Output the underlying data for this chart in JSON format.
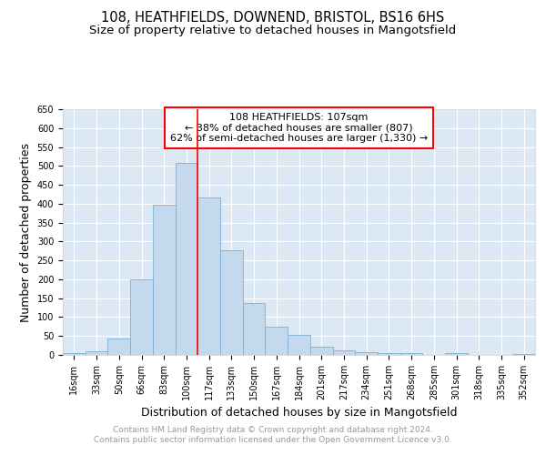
{
  "title_line1": "108, HEATHFIELDS, DOWNEND, BRISTOL, BS16 6HS",
  "title_line2": "Size of property relative to detached houses in Mangotsfield",
  "xlabel": "Distribution of detached houses by size in Mangotsfield",
  "ylabel": "Number of detached properties",
  "categories": [
    "16sqm",
    "33sqm",
    "50sqm",
    "66sqm",
    "83sqm",
    "100sqm",
    "117sqm",
    "133sqm",
    "150sqm",
    "167sqm",
    "184sqm",
    "201sqm",
    "217sqm",
    "234sqm",
    "251sqm",
    "268sqm",
    "285sqm",
    "301sqm",
    "318sqm",
    "335sqm",
    "352sqm"
  ],
  "values": [
    5,
    10,
    44,
    200,
    397,
    507,
    417,
    278,
    137,
    75,
    52,
    22,
    13,
    8,
    4,
    4,
    0,
    5,
    0,
    0,
    3
  ],
  "bar_color": "#c5d9ee",
  "bar_edge_color": "#7aafd4",
  "vline_x": 5.5,
  "vline_color": "red",
  "annotation_text": "108 HEATHFIELDS: 107sqm\n← 38% of detached houses are smaller (807)\n62% of semi-detached houses are larger (1,330) →",
  "annotation_box_color": "white",
  "annotation_box_edge_color": "red",
  "ylim": [
    0,
    650
  ],
  "yticks": [
    0,
    50,
    100,
    150,
    200,
    250,
    300,
    350,
    400,
    450,
    500,
    550,
    600,
    650
  ],
  "bg_color": "#dde8f5",
  "footnote": "Contains HM Land Registry data © Crown copyright and database right 2024.\nContains public sector information licensed under the Open Government Licence v3.0.",
  "footnote_color": "#999999",
  "title_fontsize": 10.5,
  "subtitle_fontsize": 9.5,
  "tick_fontsize": 7,
  "label_fontsize": 9,
  "annotation_fontsize": 8,
  "footnote_fontsize": 6.5
}
